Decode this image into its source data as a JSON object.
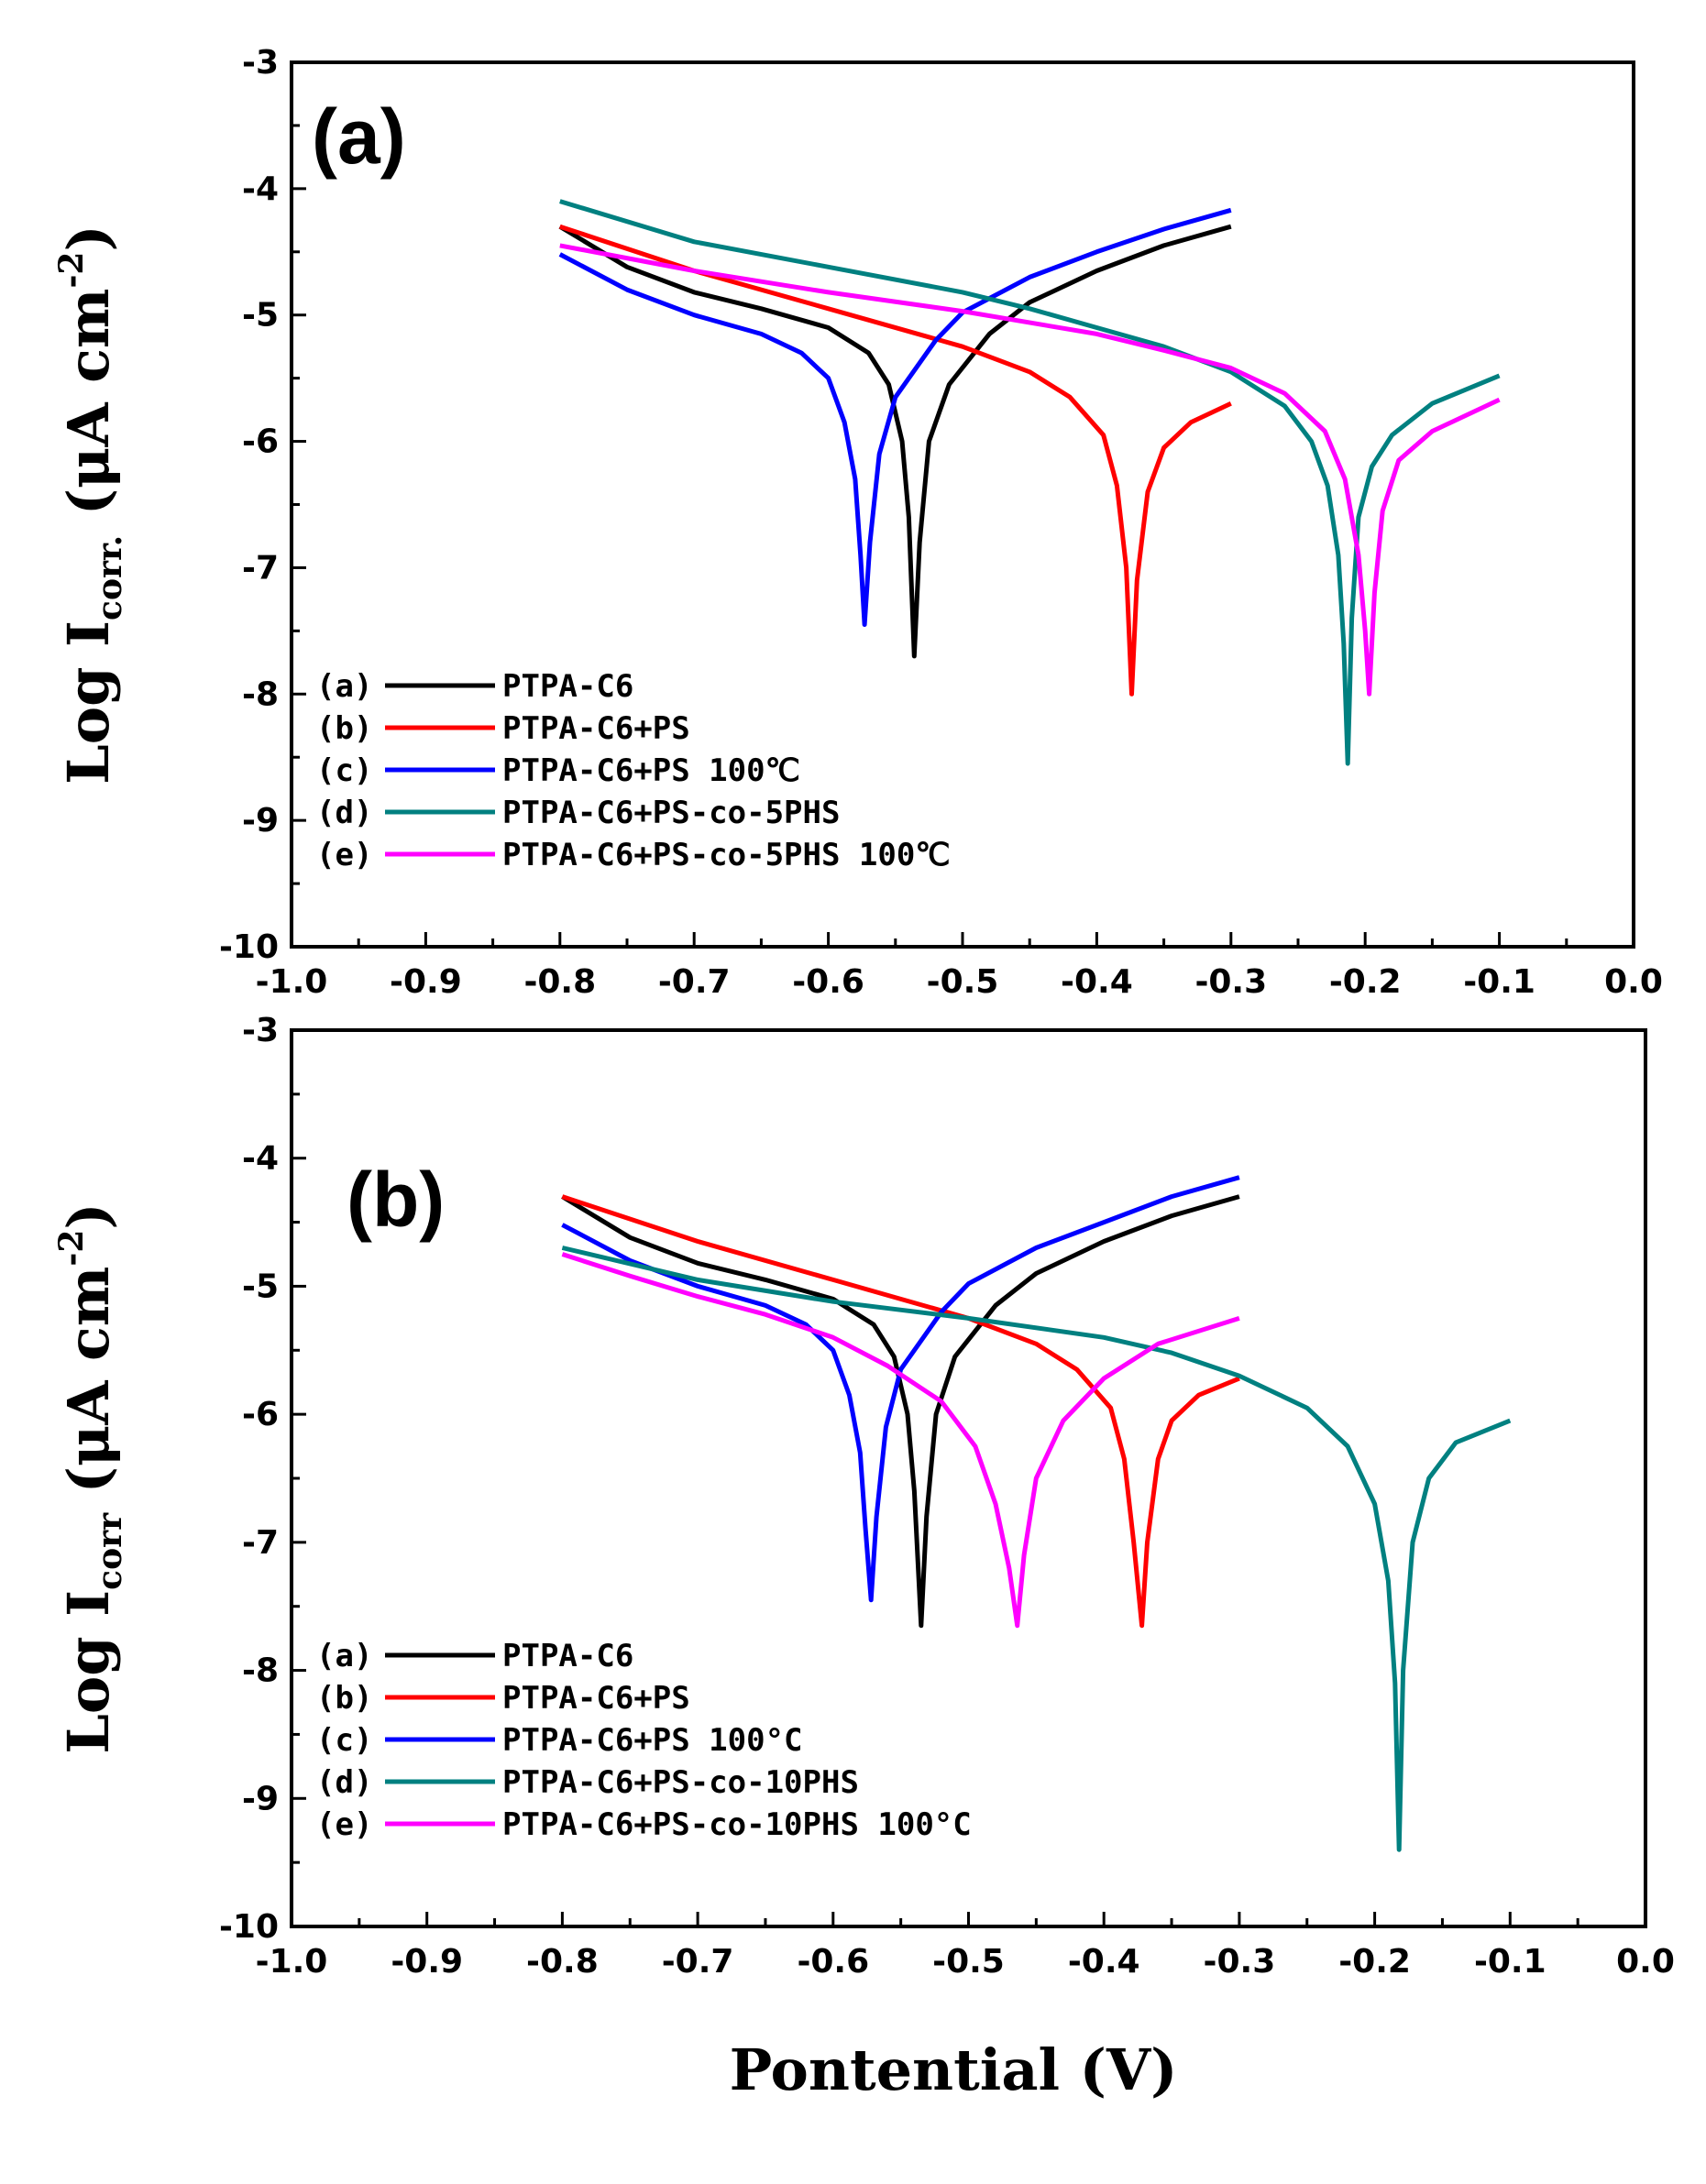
{
  "xlabel": "Pontential (V)",
  "chart_data": [
    {
      "type": "line",
      "panel_label": "(a)",
      "ylabel": {
        "main": "Log I",
        "sub": "corr.",
        "unit_open": " (μA cm",
        "sup": "-2",
        "unit_close": ")"
      },
      "xlim": [
        -1.0,
        0.0
      ],
      "ylim": [
        -10,
        -3
      ],
      "xticks": [
        -1.0,
        -0.9,
        -0.8,
        -0.7,
        -0.6,
        -0.5,
        -0.4,
        -0.3,
        -0.2,
        -0.1,
        0.0
      ],
      "xtick_labels": [
        "-1.0",
        "-0.9",
        "-0.8",
        "-0.7",
        "-0.6",
        "-0.5",
        "-0.4",
        "-0.3",
        "-0.2",
        "-0.1",
        "0.0"
      ],
      "yticks": [
        -10,
        -9,
        -8,
        -7,
        -6,
        -5,
        -4,
        -3
      ],
      "ytick_labels": [
        "-10",
        "-9",
        "-8",
        "-7",
        "-6",
        "-5",
        "-4",
        "-3"
      ],
      "legend_position": "bottom-left",
      "series": [
        {
          "letter": "(a)",
          "name": "PTPA-C6",
          "color": "#000000",
          "points": [
            [
              -0.8,
              -4.3
            ],
            [
              -0.75,
              -4.62
            ],
            [
              -0.7,
              -4.82
            ],
            [
              -0.65,
              -4.95
            ],
            [
              -0.6,
              -5.1
            ],
            [
              -0.57,
              -5.3
            ],
            [
              -0.555,
              -5.55
            ],
            [
              -0.545,
              -6.0
            ],
            [
              -0.54,
              -6.6
            ],
            [
              -0.536,
              -7.7
            ],
            [
              -0.532,
              -6.8
            ],
            [
              -0.525,
              -6.0
            ],
            [
              -0.51,
              -5.55
            ],
            [
              -0.48,
              -5.15
            ],
            [
              -0.45,
              -4.9
            ],
            [
              -0.4,
              -4.65
            ],
            [
              -0.35,
              -4.45
            ],
            [
              -0.3,
              -4.3
            ]
          ]
        },
        {
          "letter": "(b)",
          "name": "PTPA-C6+PS",
          "color": "#ff0000",
          "points": [
            [
              -0.8,
              -4.3
            ],
            [
              -0.7,
              -4.65
            ],
            [
              -0.6,
              -4.95
            ],
            [
              -0.5,
              -5.25
            ],
            [
              -0.45,
              -5.45
            ],
            [
              -0.42,
              -5.65
            ],
            [
              -0.395,
              -5.95
            ],
            [
              -0.385,
              -6.35
            ],
            [
              -0.378,
              -7.0
            ],
            [
              -0.374,
              -8.0
            ],
            [
              -0.37,
              -7.1
            ],
            [
              -0.362,
              -6.4
            ],
            [
              -0.35,
              -6.05
            ],
            [
              -0.33,
              -5.85
            ],
            [
              -0.3,
              -5.7
            ]
          ]
        },
        {
          "letter": "(c)",
          "name": "PTPA-C6+PS 100℃",
          "color": "#0000ff",
          "points": [
            [
              -0.8,
              -4.52
            ],
            [
              -0.75,
              -4.8
            ],
            [
              -0.7,
              -5.0
            ],
            [
              -0.65,
              -5.15
            ],
            [
              -0.62,
              -5.3
            ],
            [
              -0.6,
              -5.5
            ],
            [
              -0.588,
              -5.85
            ],
            [
              -0.58,
              -6.3
            ],
            [
              -0.576,
              -6.9
            ],
            [
              -0.573,
              -7.45
            ],
            [
              -0.569,
              -6.8
            ],
            [
              -0.562,
              -6.1
            ],
            [
              -0.55,
              -5.65
            ],
            [
              -0.52,
              -5.2
            ],
            [
              -0.5,
              -4.98
            ],
            [
              -0.45,
              -4.7
            ],
            [
              -0.4,
              -4.5
            ],
            [
              -0.35,
              -4.32
            ],
            [
              -0.3,
              -4.17
            ]
          ]
        },
        {
          "letter": "(d)",
          "name": "PTPA-C6+PS-co-5PHS",
          "color": "#008080",
          "points": [
            [
              -0.8,
              -4.1
            ],
            [
              -0.7,
              -4.42
            ],
            [
              -0.6,
              -4.62
            ],
            [
              -0.5,
              -4.82
            ],
            [
              -0.45,
              -4.95
            ],
            [
              -0.4,
              -5.1
            ],
            [
              -0.35,
              -5.25
            ],
            [
              -0.3,
              -5.45
            ],
            [
              -0.26,
              -5.72
            ],
            [
              -0.24,
              -6.0
            ],
            [
              -0.228,
              -6.35
            ],
            [
              -0.22,
              -6.9
            ],
            [
              -0.216,
              -7.6
            ],
            [
              -0.213,
              -8.55
            ],
            [
              -0.21,
              -7.4
            ],
            [
              -0.205,
              -6.6
            ],
            [
              -0.195,
              -6.2
            ],
            [
              -0.18,
              -5.95
            ],
            [
              -0.15,
              -5.7
            ],
            [
              -0.1,
              -5.48
            ]
          ]
        },
        {
          "letter": "(e)",
          "name": "PTPA-C6+PS-co-5PHS 100℃",
          "color": "#ff00ff",
          "points": [
            [
              -0.8,
              -4.45
            ],
            [
              -0.7,
              -4.65
            ],
            [
              -0.6,
              -4.82
            ],
            [
              -0.5,
              -4.97
            ],
            [
              -0.4,
              -5.15
            ],
            [
              -0.35,
              -5.28
            ],
            [
              -0.3,
              -5.42
            ],
            [
              -0.26,
              -5.62
            ],
            [
              -0.23,
              -5.92
            ],
            [
              -0.215,
              -6.3
            ],
            [
              -0.205,
              -6.9
            ],
            [
              -0.2,
              -7.5
            ],
            [
              -0.197,
              -8.0
            ],
            [
              -0.193,
              -7.2
            ],
            [
              -0.187,
              -6.55
            ],
            [
              -0.175,
              -6.15
            ],
            [
              -0.15,
              -5.92
            ],
            [
              -0.1,
              -5.67
            ]
          ]
        }
      ]
    },
    {
      "type": "line",
      "panel_label": "(b)",
      "ylabel": {
        "main": "Log I",
        "sub": "corr",
        "unit_open": " (μA cm",
        "sup": "-2",
        "unit_close": ")"
      },
      "xlim": [
        -1.0,
        0.0
      ],
      "ylim": [
        -10,
        -3
      ],
      "xticks": [
        -1.0,
        -0.9,
        -0.8,
        -0.7,
        -0.6,
        -0.5,
        -0.4,
        -0.3,
        -0.2,
        -0.1,
        0.0
      ],
      "xtick_labels": [
        "-1.0",
        "-0.9",
        "-0.8",
        "-0.7",
        "-0.6",
        "-0.5",
        "-0.4",
        "-0.3",
        "-0.2",
        "-0.1",
        "0.0"
      ],
      "yticks": [
        -10,
        -9,
        -8,
        -7,
        -6,
        -5,
        -4,
        -3
      ],
      "ytick_labels": [
        "-10",
        "-9",
        "-8",
        "-7",
        "-6",
        "-5",
        "-4",
        "-3"
      ],
      "legend_position": "bottom-left",
      "series": [
        {
          "letter": "(a)",
          "name": "PTPA-C6",
          "color": "#000000",
          "points": [
            [
              -0.8,
              -4.3
            ],
            [
              -0.75,
              -4.62
            ],
            [
              -0.7,
              -4.82
            ],
            [
              -0.65,
              -4.95
            ],
            [
              -0.6,
              -5.1
            ],
            [
              -0.57,
              -5.3
            ],
            [
              -0.555,
              -5.55
            ],
            [
              -0.545,
              -6.0
            ],
            [
              -0.54,
              -6.6
            ],
            [
              -0.535,
              -7.65
            ],
            [
              -0.531,
              -6.8
            ],
            [
              -0.524,
              -6.0
            ],
            [
              -0.51,
              -5.55
            ],
            [
              -0.48,
              -5.15
            ],
            [
              -0.45,
              -4.9
            ],
            [
              -0.4,
              -4.65
            ],
            [
              -0.35,
              -4.45
            ],
            [
              -0.3,
              -4.3
            ]
          ]
        },
        {
          "letter": "(b)",
          "name": "PTPA-C6+PS",
          "color": "#ff0000",
          "points": [
            [
              -0.8,
              -4.3
            ],
            [
              -0.7,
              -4.65
            ],
            [
              -0.6,
              -4.95
            ],
            [
              -0.5,
              -5.25
            ],
            [
              -0.45,
              -5.45
            ],
            [
              -0.42,
              -5.65
            ],
            [
              -0.395,
              -5.95
            ],
            [
              -0.385,
              -6.35
            ],
            [
              -0.378,
              -7.0
            ],
            [
              -0.372,
              -7.65
            ],
            [
              -0.368,
              -7.0
            ],
            [
              -0.36,
              -6.35
            ],
            [
              -0.35,
              -6.05
            ],
            [
              -0.33,
              -5.85
            ],
            [
              -0.3,
              -5.72
            ]
          ]
        },
        {
          "letter": "(c)",
          "name": "PTPA-C6+PS 100°C",
          "color": "#0000ff",
          "points": [
            [
              -0.8,
              -4.52
            ],
            [
              -0.75,
              -4.8
            ],
            [
              -0.7,
              -5.0
            ],
            [
              -0.65,
              -5.15
            ],
            [
              -0.62,
              -5.3
            ],
            [
              -0.6,
              -5.5
            ],
            [
              -0.588,
              -5.85
            ],
            [
              -0.58,
              -6.3
            ],
            [
              -0.576,
              -6.9
            ],
            [
              -0.572,
              -7.45
            ],
            [
              -0.568,
              -6.8
            ],
            [
              -0.561,
              -6.1
            ],
            [
              -0.55,
              -5.65
            ],
            [
              -0.52,
              -5.2
            ],
            [
              -0.5,
              -4.98
            ],
            [
              -0.45,
              -4.7
            ],
            [
              -0.4,
              -4.5
            ],
            [
              -0.35,
              -4.3
            ],
            [
              -0.3,
              -4.15
            ]
          ]
        },
        {
          "letter": "(d)",
          "name": "PTPA-C6+PS-co-10PHS",
          "color": "#008080",
          "points": [
            [
              -0.8,
              -4.7
            ],
            [
              -0.7,
              -4.95
            ],
            [
              -0.6,
              -5.12
            ],
            [
              -0.5,
              -5.25
            ],
            [
              -0.4,
              -5.4
            ],
            [
              -0.35,
              -5.52
            ],
            [
              -0.3,
              -5.7
            ],
            [
              -0.25,
              -5.95
            ],
            [
              -0.22,
              -6.25
            ],
            [
              -0.2,
              -6.7
            ],
            [
              -0.19,
              -7.3
            ],
            [
              -0.185,
              -8.1
            ],
            [
              -0.182,
              -9.4
            ],
            [
              -0.179,
              -8.0
            ],
            [
              -0.172,
              -7.0
            ],
            [
              -0.16,
              -6.5
            ],
            [
              -0.14,
              -6.22
            ],
            [
              -0.1,
              -6.05
            ]
          ]
        },
        {
          "letter": "(e)",
          "name": "PTPA-C6+PS-co-10PHS 100°C",
          "color": "#ff00ff",
          "points": [
            [
              -0.8,
              -4.75
            ],
            [
              -0.75,
              -4.92
            ],
            [
              -0.7,
              -5.08
            ],
            [
              -0.65,
              -5.22
            ],
            [
              -0.6,
              -5.4
            ],
            [
              -0.56,
              -5.62
            ],
            [
              -0.52,
              -5.9
            ],
            [
              -0.495,
              -6.25
            ],
            [
              -0.48,
              -6.7
            ],
            [
              -0.47,
              -7.2
            ],
            [
              -0.464,
              -7.65
            ],
            [
              -0.459,
              -7.1
            ],
            [
              -0.45,
              -6.5
            ],
            [
              -0.43,
              -6.05
            ],
            [
              -0.4,
              -5.72
            ],
            [
              -0.36,
              -5.45
            ],
            [
              -0.3,
              -5.25
            ]
          ]
        }
      ]
    }
  ]
}
